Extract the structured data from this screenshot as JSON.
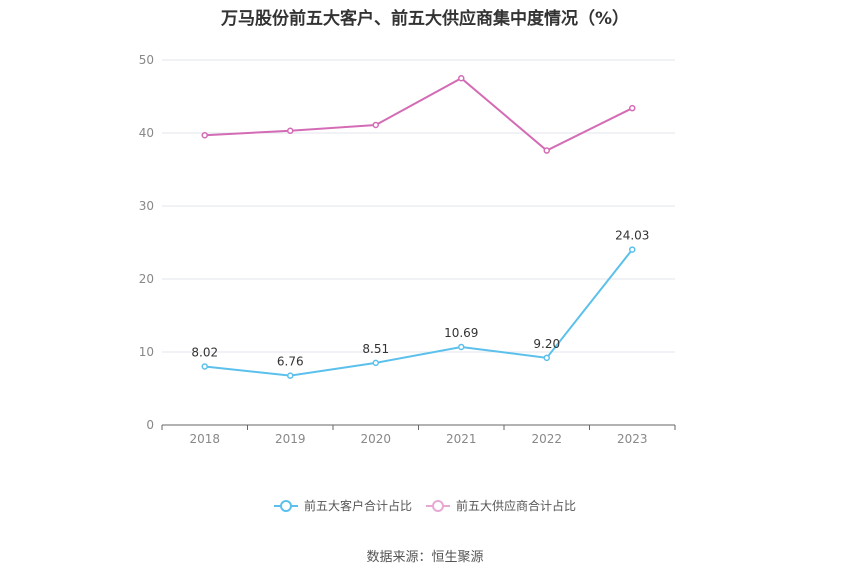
{
  "chart_data": {
    "type": "line",
    "title": "万马股份前五大客户、前五大供应商集中度情况（%）",
    "categories": [
      "2018",
      "2019",
      "2020",
      "2021",
      "2022",
      "2023"
    ],
    "ylim": [
      0,
      50
    ],
    "yticks": [
      "0",
      "10",
      "20",
      "30",
      "40",
      "50"
    ],
    "grid": true,
    "legend_position": "bottom-center",
    "series": [
      {
        "name": "前五大客户合计占比",
        "color": "#5bc0eb",
        "values": [
          8.02,
          6.76,
          8.51,
          10.69,
          9.2,
          24.03
        ],
        "data_labels": [
          "8.02",
          "6.76",
          "8.51",
          "10.69",
          "9.20",
          "24.03"
        ]
      },
      {
        "name": "前五大供应商合计占比",
        "color": "#d46bb5",
        "values": [
          39.7,
          40.3,
          41.1,
          47.5,
          37.6,
          43.4
        ],
        "data_labels": []
      }
    ]
  },
  "source": "数据来源：恒生聚源"
}
